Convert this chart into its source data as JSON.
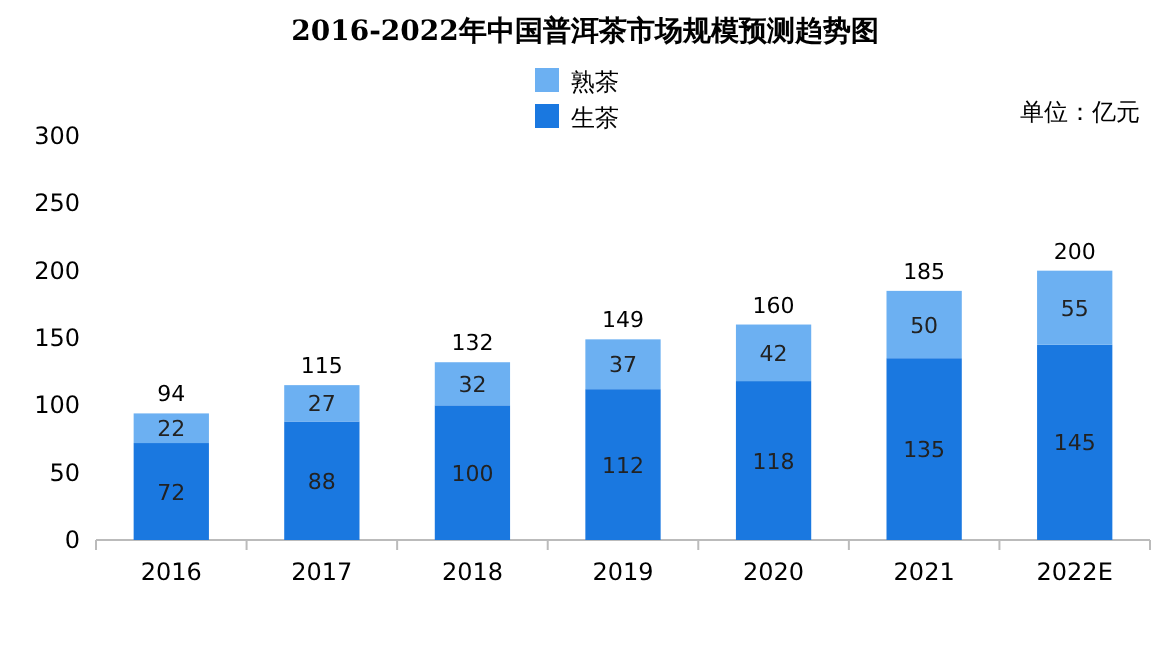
{
  "chart_data": {
    "type": "bar",
    "title": "2016-2022年中国普洱茶市场规模预测趋势图",
    "annotations": [
      "单位：亿元"
    ],
    "categories": [
      "2016",
      "2017",
      "2018",
      "2019",
      "2020",
      "2021",
      "2022E"
    ],
    "stacked": true,
    "legend": "top",
    "data_labels": true,
    "grid": false,
    "ylim": [
      0,
      300
    ],
    "yticks": [
      0,
      50,
      100,
      150,
      200,
      250,
      300
    ],
    "series": [
      {
        "name": "生茶",
        "color": "#1a78e0",
        "values": [
          72,
          88,
          100,
          112,
          118,
          135,
          145
        ]
      },
      {
        "name": "熟茶",
        "color": "#6cb0f2",
        "values": [
          22,
          27,
          32,
          37,
          42,
          50,
          55
        ]
      }
    ],
    "totals": [
      "94",
      "115",
      "132",
      "149",
      "160",
      "185",
      "200"
    ]
  }
}
